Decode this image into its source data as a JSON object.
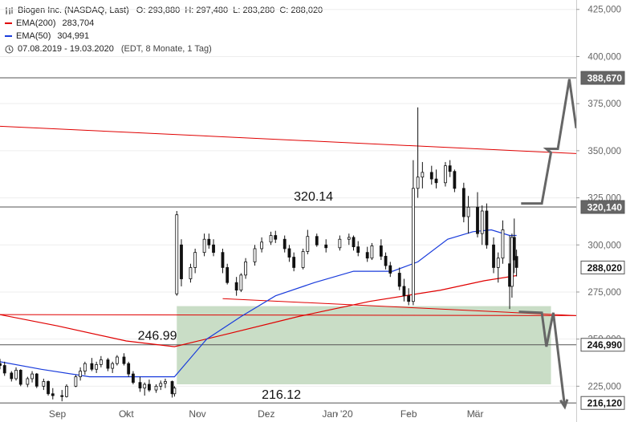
{
  "header": {
    "title": "Biogen Inc. (NASDAQ, Last)",
    "ohlc": "O: 293,880  H: 297,480  L: 283,280  C: 288,020",
    "ema200_label": "EMA(200)",
    "ema200_value": "283,704",
    "ema50_label": "EMA(50)",
    "ema50_value": "304,991",
    "range": "07.08.2019 - 19.03.2020",
    "range_info": "(EDT, 8 Monate, 1 Tag)"
  },
  "colors": {
    "ema200": "#e00000",
    "ema50": "#1a3cdc",
    "candle": "#111111",
    "channel": "#e00000",
    "zone": "#c9ddc6",
    "arrow": "#666666",
    "level": "#555555"
  },
  "chart_data": {
    "type": "candlestick",
    "ylim": [
      206,
      430
    ],
    "y_ticks": [
      225000,
      250000,
      275000,
      300000,
      325000,
      350000,
      375000,
      400000,
      425000
    ],
    "y_tick_labels": [
      "225,000",
      "250,000",
      "275,000",
      "300,000",
      "325,000",
      "350,000",
      "375,000",
      "400,000",
      "425,000"
    ],
    "x_labels": [
      "Sep",
      "Okt",
      "Nov",
      "Dez",
      "Jan '20",
      "Feb",
      "Mär"
    ],
    "x_label_dates": [
      "2019-09-01",
      "2019-10-01",
      "2019-11-01",
      "2019-12-01",
      "2020-01-01",
      "2020-02-01",
      "2020-03-01"
    ],
    "x_range": [
      "2019-08-07",
      "2020-04-14"
    ],
    "horizontal_levels": [
      {
        "value": 388.67,
        "label": "388,670",
        "dark": true
      },
      {
        "value": 320.14,
        "label": "320,140",
        "dark": true,
        "annotation": "320.14"
      },
      {
        "value": 288.02,
        "label": "288,020",
        "dark": false
      },
      {
        "value": 246.99,
        "label": "246,990",
        "dark": false,
        "annotation": "246.99"
      },
      {
        "value": 216.12,
        "label": "216,120",
        "dark": false,
        "annotation": "216.12"
      }
    ],
    "channel_lines": [
      {
        "from": [
          "2019-08-07",
          363.0
        ],
        "to": [
          "2020-04-14",
          348.5
        ]
      },
      {
        "from": [
          "2019-08-07",
          263.0
        ],
        "to": [
          "2020-04-14",
          262.5
        ]
      },
      {
        "from": [
          "2019-11-12",
          271.5
        ],
        "to": [
          "2020-04-14",
          262.5
        ]
      }
    ],
    "zone": {
      "from": "2019-10-23",
      "to": "2020-04-03",
      "low": 226.0,
      "high": 267.5
    },
    "ema50": [
      [
        "2019-08-07",
        238
      ],
      [
        "2019-08-25",
        234
      ],
      [
        "2019-09-15",
        230
      ],
      [
        "2019-10-05",
        230
      ],
      [
        "2019-10-22",
        230
      ],
      [
        "2019-11-05",
        250
      ],
      [
        "2019-11-20",
        262
      ],
      [
        "2019-12-05",
        273
      ],
      [
        "2019-12-22",
        280
      ],
      [
        "2020-01-08",
        286
      ],
      [
        "2020-01-25",
        286
      ],
      [
        "2020-02-05",
        291
      ],
      [
        "2020-02-18",
        303
      ],
      [
        "2020-02-29",
        307
      ],
      [
        "2020-03-08",
        308
      ],
      [
        "2020-03-16",
        305
      ],
      [
        "2020-03-19",
        304.991
      ]
    ],
    "ema200": [
      [
        "2019-08-07",
        263
      ],
      [
        "2019-09-01",
        257
      ],
      [
        "2019-10-01",
        249
      ],
      [
        "2019-10-22",
        246
      ],
      [
        "2019-11-15",
        253
      ],
      [
        "2019-12-15",
        262
      ],
      [
        "2020-01-15",
        270
      ],
      [
        "2020-02-15",
        276
      ],
      [
        "2020-03-05",
        281
      ],
      [
        "2020-03-19",
        283.704
      ]
    ],
    "candles": [
      [
        "2019-08-07",
        237.0,
        239.5,
        234.0,
        236.0
      ],
      [
        "2019-08-09",
        236.0,
        238.0,
        230.5,
        232.0
      ],
      [
        "2019-08-12",
        232.0,
        233.0,
        227.5,
        229.0
      ],
      [
        "2019-08-14",
        229.0,
        235.0,
        228.0,
        233.5
      ],
      [
        "2019-08-16",
        233.5,
        234.0,
        225.0,
        226.0
      ],
      [
        "2019-08-19",
        226.0,
        230.0,
        224.5,
        229.0
      ],
      [
        "2019-08-21",
        229.0,
        233.0,
        227.0,
        231.5
      ],
      [
        "2019-08-23",
        231.5,
        232.0,
        224.0,
        225.0
      ],
      [
        "2019-08-26",
        225.0,
        229.0,
        223.0,
        227.5
      ],
      [
        "2019-08-28",
        227.5,
        228.0,
        220.0,
        221.0
      ],
      [
        "2019-08-30",
        221.0,
        224.0,
        218.0,
        220.0
      ],
      [
        "2019-09-03",
        220.0,
        223.0,
        217.0,
        219.5
      ],
      [
        "2019-09-05",
        219.5,
        226.0,
        219.0,
        225.0
      ],
      [
        "2019-09-09",
        225.0,
        231.0,
        224.5,
        230.0
      ],
      [
        "2019-09-11",
        230.0,
        235.0,
        228.0,
        233.0
      ],
      [
        "2019-09-13",
        233.0,
        238.0,
        231.0,
        237.0
      ],
      [
        "2019-09-16",
        237.0,
        240.0,
        233.0,
        234.0
      ],
      [
        "2019-09-18",
        234.0,
        238.0,
        232.0,
        236.5
      ],
      [
        "2019-09-20",
        236.5,
        241.0,
        235.0,
        239.0
      ],
      [
        "2019-09-23",
        239.0,
        240.0,
        233.0,
        234.5
      ],
      [
        "2019-09-25",
        234.5,
        238.0,
        232.0,
        237.0
      ],
      [
        "2019-09-27",
        237.0,
        241.5,
        236.0,
        240.5
      ],
      [
        "2019-09-30",
        240.5,
        242.5,
        236.0,
        237.0
      ],
      [
        "2019-10-02",
        237.0,
        238.0,
        230.0,
        231.5
      ],
      [
        "2019-10-04",
        231.5,
        233.0,
        226.0,
        227.0
      ],
      [
        "2019-10-07",
        227.0,
        230.0,
        222.0,
        224.0
      ],
      [
        "2019-10-09",
        224.0,
        227.0,
        220.0,
        226.0
      ],
      [
        "2019-10-11",
        226.0,
        228.5,
        222.0,
        223.0
      ],
      [
        "2019-10-14",
        223.0,
        226.0,
        221.5,
        225.0
      ],
      [
        "2019-10-16",
        225.0,
        228.0,
        223.0,
        226.5
      ],
      [
        "2019-10-18",
        226.5,
        229.0,
        224.0,
        227.5
      ],
      [
        "2019-10-21",
        227.5,
        228.0,
        219.0,
        221.0
      ],
      [
        "2019-10-22",
        221.0,
        225.0,
        219.5,
        224.0
      ],
      [
        "2019-10-23",
        274.0,
        318.0,
        273.0,
        316.0
      ],
      [
        "2019-10-25",
        300.0,
        303.0,
        278.0,
        282.0
      ],
      [
        "2019-10-29",
        282.0,
        290.0,
        280.0,
        288.0
      ],
      [
        "2019-10-31",
        288.0,
        298.0,
        285.0,
        296.0
      ],
      [
        "2019-11-04",
        296.0,
        306.0,
        294.0,
        303.0
      ],
      [
        "2019-11-06",
        303.0,
        306.0,
        298.0,
        300.0
      ],
      [
        "2019-11-08",
        300.0,
        303.0,
        294.0,
        296.0
      ],
      [
        "2019-11-12",
        296.0,
        298.0,
        285.0,
        288.0
      ],
      [
        "2019-11-14",
        288.0,
        290.0,
        279.0,
        280.0
      ],
      [
        "2019-11-18",
        280.0,
        283.0,
        273.0,
        276.0
      ],
      [
        "2019-11-20",
        276.0,
        285.0,
        275.0,
        284.0
      ],
      [
        "2019-11-22",
        284.0,
        293.0,
        282.0,
        291.0
      ],
      [
        "2019-11-26",
        291.0,
        300.0,
        289.0,
        298.0
      ],
      [
        "2019-11-29",
        298.0,
        304.0,
        296.0,
        301.5
      ],
      [
        "2019-12-03",
        301.5,
        307.0,
        300.0,
        305.0
      ],
      [
        "2019-12-05",
        305.0,
        307.5,
        301.0,
        303.0
      ],
      [
        "2019-12-09",
        303.0,
        305.0,
        296.0,
        298.0
      ],
      [
        "2019-12-11",
        298.0,
        300.0,
        291.0,
        293.5
      ],
      [
        "2019-12-13",
        293.5,
        296.0,
        286.0,
        288.0
      ],
      [
        "2019-12-17",
        288.0,
        298.0,
        287.0,
        296.5
      ],
      [
        "2019-12-19",
        296.5,
        308.0,
        295.0,
        304.5
      ],
      [
        "2019-12-23",
        304.5,
        306.0,
        299.0,
        300.0
      ],
      [
        "2019-12-27",
        300.0,
        303.0,
        296.0,
        298.5
      ],
      [
        "2020-01-02",
        298.5,
        305.0,
        297.0,
        303.0
      ],
      [
        "2020-01-06",
        303.0,
        306.0,
        300.0,
        304.0
      ],
      [
        "2020-01-08",
        304.0,
        305.0,
        297.0,
        299.0
      ],
      [
        "2020-01-10",
        299.0,
        302.0,
        294.0,
        296.0
      ],
      [
        "2020-01-14",
        296.0,
        299.0,
        291.0,
        293.0
      ],
      [
        "2020-01-16",
        293.0,
        301.0,
        292.0,
        299.5
      ],
      [
        "2020-01-20",
        299.5,
        303.0,
        292.0,
        294.0
      ],
      [
        "2020-01-22",
        294.0,
        296.0,
        287.0,
        289.0
      ],
      [
        "2020-01-24",
        289.0,
        291.0,
        283.0,
        285.0
      ],
      [
        "2020-01-28",
        285.0,
        288.0,
        276.0,
        278.0
      ],
      [
        "2020-01-30",
        278.0,
        282.0,
        270.0,
        273.0
      ],
      [
        "2020-02-01",
        273.0,
        277.0,
        268.0,
        270.0
      ],
      [
        "2020-02-03",
        270.0,
        345.0,
        268.0,
        330.0
      ],
      [
        "2020-02-05",
        330.0,
        373.0,
        325.0,
        336.0
      ],
      [
        "2020-02-07",
        336.0,
        344.0,
        330.0,
        338.5
      ],
      [
        "2020-02-11",
        338.5,
        342.0,
        332.0,
        335.0
      ],
      [
        "2020-02-13",
        335.0,
        340.0,
        330.0,
        333.0
      ],
      [
        "2020-02-17",
        333.0,
        344.0,
        331.0,
        342.0
      ],
      [
        "2020-02-19",
        342.0,
        345.0,
        336.0,
        339.0
      ],
      [
        "2020-02-21",
        339.0,
        340.0,
        328.0,
        330.0
      ],
      [
        "2020-02-25",
        330.0,
        333.0,
        312.0,
        315.0
      ],
      [
        "2020-02-27",
        315.0,
        326.0,
        306.0,
        320.0
      ],
      [
        "2020-03-02",
        320.0,
        328.0,
        304.0,
        306.0
      ],
      [
        "2020-03-04",
        306.0,
        321.0,
        300.0,
        318.0
      ],
      [
        "2020-03-06",
        318.0,
        322.0,
        298.0,
        300.0
      ],
      [
        "2020-03-09",
        300.0,
        304.0,
        285.0,
        288.0
      ],
      [
        "2020-03-11",
        288.0,
        296.0,
        280.0,
        293.0
      ],
      [
        "2020-03-13",
        293.0,
        313.0,
        290.0,
        308.0
      ],
      [
        "2020-03-16",
        290.0,
        305.0,
        266.0,
        278.0
      ],
      [
        "2020-03-17",
        278.0,
        306.0,
        272.0,
        304.0
      ],
      [
        "2020-03-18",
        304.0,
        314.0,
        285.0,
        292.0
      ],
      [
        "2020-03-19",
        293.88,
        297.48,
        283.28,
        288.02
      ]
    ],
    "projection_up": [
      [
        "2020-03-21",
        322
      ],
      [
        "2020-03-30",
        322
      ],
      [
        "2020-04-03",
        349
      ],
      [
        "2020-04-01",
        351
      ],
      [
        "2020-04-06",
        351
      ],
      [
        "2020-04-11",
        388
      ],
      [
        "2020-04-14",
        362
      ],
      [
        "2020-04-20",
        402
      ]
    ],
    "projection_down": [
      [
        "2020-03-20",
        264.5
      ],
      [
        "2020-03-30",
        264
      ],
      [
        "2020-04-01",
        246
      ],
      [
        "2020-04-04",
        264
      ],
      [
        "2020-04-09",
        214
      ]
    ]
  }
}
